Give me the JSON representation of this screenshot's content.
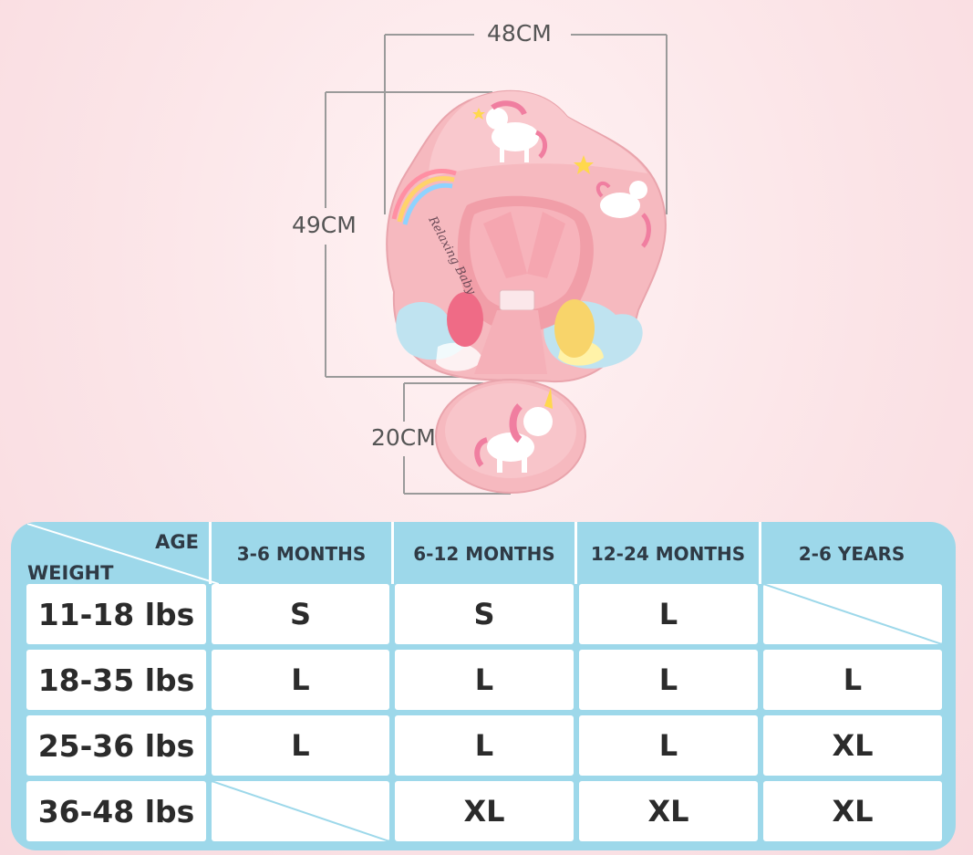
{
  "dimensions": {
    "width_label": "48CM",
    "height_label": "49CM",
    "seat_label": "20CM"
  },
  "product_print": {
    "brand_text": "Relaxing Baby"
  },
  "colors": {
    "float_pink": "#f6b9bf",
    "table_blue": "#9dd8ea",
    "cell_white": "#ffffff",
    "text_dark": "#2b2b2b"
  },
  "size_table": {
    "corner_top": "AGE",
    "corner_bottom": "WEIGHT",
    "columns": [
      "3-6 MONTHS",
      "6-12 MONTHS",
      "12-24 MONTHS",
      "2-6 YEARS"
    ],
    "rows": [
      {
        "weight": "11-18 lbs",
        "sizes": [
          "S",
          "S",
          "L",
          ""
        ]
      },
      {
        "weight": "18-35 lbs",
        "sizes": [
          "L",
          "L",
          "L",
          "L"
        ]
      },
      {
        "weight": "25-36 lbs",
        "sizes": [
          "L",
          "L",
          "L",
          "XL"
        ]
      },
      {
        "weight": "36-48 lbs",
        "sizes": [
          "",
          "XL",
          "XL",
          "XL"
        ]
      }
    ]
  }
}
